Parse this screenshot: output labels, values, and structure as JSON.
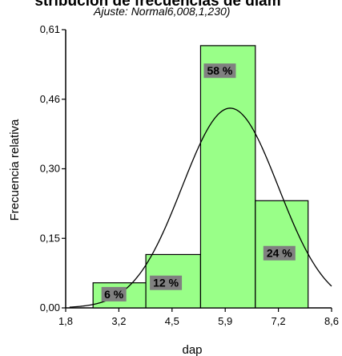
{
  "chart_data": {
    "type": "bar",
    "title": "stribución de frecuencias de diám",
    "subtitle": "Ajuste: Normal6,008,1,230)",
    "xlabel": "dap",
    "ylabel": "Frecuencia relativa",
    "xlim": [
      1.8,
      8.6
    ],
    "ylim": [
      0,
      0.61
    ],
    "x_ticks": [
      "1,8",
      "3,2",
      "4,5",
      "5,9",
      "7,2",
      "8,6"
    ],
    "y_ticks": [
      "0,00",
      "0,15",
      "0,30",
      "0,46",
      "0,61"
    ],
    "bins": [
      {
        "start": 2.5,
        "end": 3.85,
        "value": 0.055,
        "label": "6 %"
      },
      {
        "start": 3.85,
        "end": 5.25,
        "value": 0.117,
        "label": "12 %"
      },
      {
        "start": 5.25,
        "end": 6.65,
        "value": 0.575,
        "label": "58 %"
      },
      {
        "start": 6.65,
        "end": 8.0,
        "value": 0.235,
        "label": "24 %"
      }
    ],
    "fit": {
      "distribution": "Normal",
      "mean": 6.008,
      "sd": 1.23
    },
    "bar_color": "#99ff88",
    "label_bg": "#808080"
  }
}
